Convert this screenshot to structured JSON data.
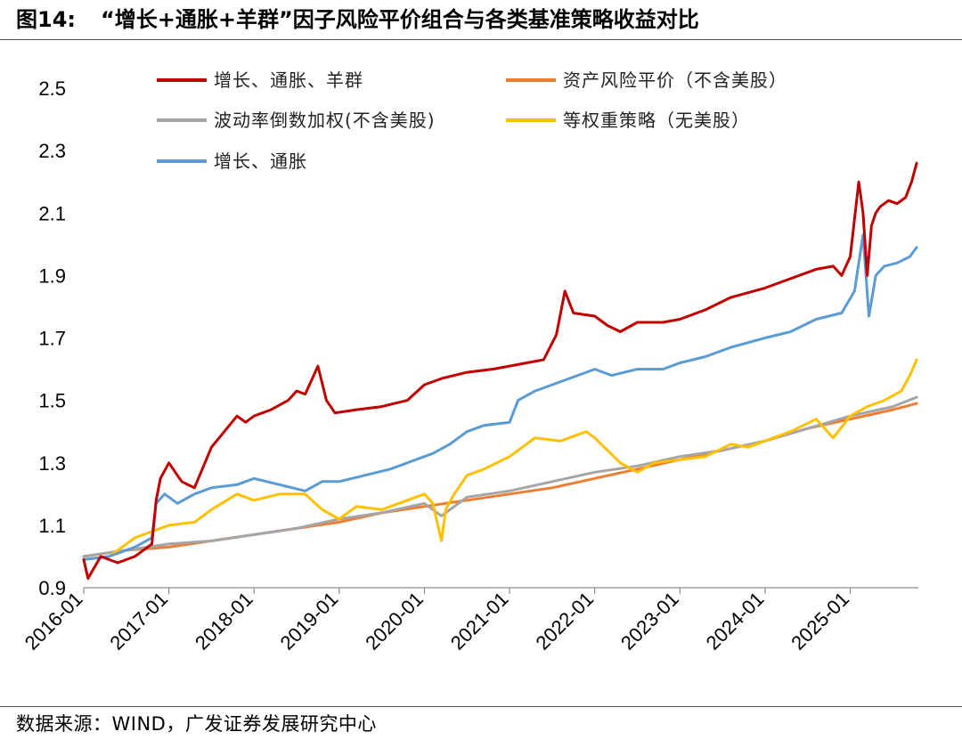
{
  "figure": {
    "number": "图14:",
    "title": "“增长+通胀+羊群”因子风险平价组合与各类基准策略收益对比",
    "source": "数据来源：WIND，广发证券发展研究中心"
  },
  "chart_data": {
    "type": "line",
    "xlabel": "",
    "ylabel": "",
    "ylim": [
      0.9,
      2.6
    ],
    "yticks": [
      0.9,
      1.1,
      1.3,
      1.5,
      1.7,
      1.9,
      2.1,
      2.3,
      2.5
    ],
    "ytick_labels": [
      "0.9",
      "1.1",
      "1.3",
      "1.5",
      "1.7",
      "1.9",
      "2.1",
      "2.3",
      "2.5"
    ],
    "xlim": [
      2016.0,
      2025.8
    ],
    "xticks": [
      2016.0,
      2017.0,
      2018.0,
      2019.0,
      2020.0,
      2021.0,
      2022.0,
      2023.0,
      2024.0,
      2025.0
    ],
    "xtick_labels": [
      "2016-01",
      "2017-01",
      "2018-01",
      "2019-01",
      "2020-01",
      "2021-01",
      "2022-01",
      "2023-01",
      "2024-01",
      "2025-01"
    ],
    "grid": false,
    "legend_position": "top",
    "series": [
      {
        "name": "增长、通胀、羊群",
        "color": "#C00000",
        "x": [
          2016.0,
          2016.05,
          2016.2,
          2016.4,
          2016.6,
          2016.8,
          2016.85,
          2016.9,
          2017.0,
          2017.15,
          2017.3,
          2017.5,
          2017.65,
          2017.8,
          2017.9,
          2018.0,
          2018.2,
          2018.4,
          2018.5,
          2018.6,
          2018.7,
          2018.75,
          2018.85,
          2018.95,
          2019.2,
          2019.5,
          2019.8,
          2020.0,
          2020.2,
          2020.5,
          2020.8,
          2021.0,
          2021.2,
          2021.4,
          2021.55,
          2021.65,
          2021.75,
          2022.0,
          2022.15,
          2022.3,
          2022.5,
          2022.8,
          2023.0,
          2023.3,
          2023.6,
          2024.0,
          2024.3,
          2024.6,
          2024.8,
          2024.9,
          2025.0,
          2025.1,
          2025.15,
          2025.2,
          2025.25,
          2025.3,
          2025.35,
          2025.45,
          2025.55,
          2025.65,
          2025.72,
          2025.78
        ],
        "values": [
          0.99,
          0.93,
          1.0,
          0.98,
          1.0,
          1.04,
          1.18,
          1.25,
          1.3,
          1.24,
          1.22,
          1.35,
          1.4,
          1.45,
          1.43,
          1.45,
          1.47,
          1.5,
          1.53,
          1.52,
          1.58,
          1.61,
          1.5,
          1.46,
          1.47,
          1.48,
          1.5,
          1.55,
          1.57,
          1.59,
          1.6,
          1.61,
          1.62,
          1.63,
          1.71,
          1.85,
          1.78,
          1.77,
          1.74,
          1.72,
          1.75,
          1.75,
          1.76,
          1.79,
          1.83,
          1.86,
          1.89,
          1.92,
          1.93,
          1.9,
          1.96,
          2.2,
          2.1,
          1.9,
          2.06,
          2.1,
          2.12,
          2.14,
          2.13,
          2.15,
          2.2,
          2.26
        ]
      },
      {
        "name": "资产风险平价（不含美股）",
        "color": "#ED7D31",
        "x": [
          2016.0,
          2016.5,
          2017.0,
          2017.5,
          2018.0,
          2018.5,
          2019.0,
          2019.5,
          2020.0,
          2020.5,
          2021.0,
          2021.5,
          2022.0,
          2022.5,
          2023.0,
          2023.5,
          2024.0,
          2024.5,
          2025.0,
          2025.5,
          2025.78
        ],
        "values": [
          1.0,
          1.02,
          1.03,
          1.05,
          1.07,
          1.09,
          1.11,
          1.14,
          1.16,
          1.18,
          1.2,
          1.22,
          1.25,
          1.28,
          1.31,
          1.34,
          1.37,
          1.41,
          1.44,
          1.47,
          1.49
        ]
      },
      {
        "name": "波动率倒数加权(不含美股)",
        "color": "#A5A5A5",
        "x": [
          2016.0,
          2016.5,
          2017.0,
          2017.5,
          2018.0,
          2018.5,
          2019.0,
          2019.5,
          2020.0,
          2020.2,
          2020.5,
          2021.0,
          2021.5,
          2022.0,
          2022.5,
          2023.0,
          2023.5,
          2024.0,
          2024.5,
          2025.0,
          2025.5,
          2025.78
        ],
        "values": [
          1.0,
          1.02,
          1.04,
          1.05,
          1.07,
          1.09,
          1.12,
          1.14,
          1.17,
          1.13,
          1.19,
          1.21,
          1.24,
          1.27,
          1.29,
          1.32,
          1.34,
          1.37,
          1.41,
          1.45,
          1.48,
          1.51
        ]
      },
      {
        "name": "等权重策略（无美股）",
        "color": "#FFC000",
        "x": [
          2016.0,
          2016.3,
          2016.6,
          2016.8,
          2017.0,
          2017.3,
          2017.5,
          2017.8,
          2018.0,
          2018.3,
          2018.6,
          2018.8,
          2019.0,
          2019.2,
          2019.5,
          2019.8,
          2020.0,
          2020.1,
          2020.2,
          2020.25,
          2020.35,
          2020.5,
          2020.7,
          2021.0,
          2021.3,
          2021.6,
          2021.9,
          2022.0,
          2022.3,
          2022.5,
          2022.7,
          2023.0,
          2023.3,
          2023.6,
          2023.8,
          2024.0,
          2024.3,
          2024.6,
          2024.8,
          2025.0,
          2025.2,
          2025.4,
          2025.6,
          2025.7,
          2025.78
        ],
        "values": [
          0.99,
          1.0,
          1.06,
          1.08,
          1.1,
          1.11,
          1.15,
          1.2,
          1.18,
          1.2,
          1.2,
          1.15,
          1.12,
          1.16,
          1.15,
          1.18,
          1.2,
          1.17,
          1.05,
          1.15,
          1.2,
          1.26,
          1.28,
          1.32,
          1.38,
          1.37,
          1.4,
          1.38,
          1.3,
          1.27,
          1.3,
          1.31,
          1.32,
          1.36,
          1.35,
          1.37,
          1.4,
          1.44,
          1.38,
          1.45,
          1.48,
          1.5,
          1.53,
          1.58,
          1.63
        ]
      },
      {
        "name": "增长、通胀",
        "color": "#5B9BD5",
        "x": [
          2016.0,
          2016.3,
          2016.6,
          2016.8,
          2016.85,
          2016.95,
          2017.1,
          2017.3,
          2017.5,
          2017.8,
          2018.0,
          2018.3,
          2018.6,
          2018.8,
          2019.0,
          2019.3,
          2019.6,
          2019.9,
          2020.1,
          2020.3,
          2020.5,
          2020.7,
          2021.0,
          2021.1,
          2021.3,
          2021.5,
          2021.7,
          2022.0,
          2022.2,
          2022.5,
          2022.8,
          2023.0,
          2023.3,
          2023.6,
          2024.0,
          2024.3,
          2024.6,
          2024.9,
          2025.05,
          2025.15,
          2025.22,
          2025.3,
          2025.4,
          2025.55,
          2025.7,
          2025.78
        ],
        "values": [
          0.99,
          1.0,
          1.03,
          1.06,
          1.17,
          1.2,
          1.17,
          1.2,
          1.22,
          1.23,
          1.25,
          1.23,
          1.21,
          1.24,
          1.24,
          1.26,
          1.28,
          1.31,
          1.33,
          1.36,
          1.4,
          1.42,
          1.43,
          1.5,
          1.53,
          1.55,
          1.57,
          1.6,
          1.58,
          1.6,
          1.6,
          1.62,
          1.64,
          1.67,
          1.7,
          1.72,
          1.76,
          1.78,
          1.85,
          2.03,
          1.77,
          1.9,
          1.93,
          1.94,
          1.96,
          1.99
        ]
      }
    ]
  }
}
